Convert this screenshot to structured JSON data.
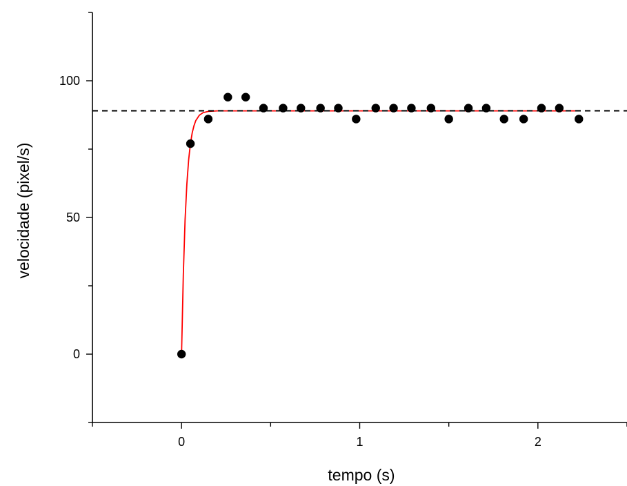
{
  "chart_data": {
    "type": "scatter",
    "title": "",
    "xlabel": "tempo (s)",
    "ylabel": "velocidade (pixel/s)",
    "xlim": [
      -0.5,
      2.5
    ],
    "ylim": [
      -25,
      125
    ],
    "xticks": [
      0,
      1,
      2
    ],
    "xtick_labels": [
      "0",
      "1",
      "2"
    ],
    "yticks": [
      0,
      50,
      100
    ],
    "ytick_labels": [
      "0",
      "50",
      "100"
    ],
    "grid": false,
    "series": [
      {
        "kind": "scatter",
        "color": "#000000",
        "x": [
          0.0,
          0.05,
          0.15,
          0.26,
          0.36,
          0.46,
          0.57,
          0.67,
          0.78,
          0.88,
          0.98,
          1.09,
          1.19,
          1.29,
          1.4,
          1.5,
          1.61,
          1.71,
          1.81,
          1.92,
          2.02,
          2.12,
          2.23
        ],
        "y": [
          0,
          77,
          86,
          94,
          94,
          90,
          90,
          90,
          90,
          90,
          86,
          90,
          90,
          90,
          90,
          86,
          90,
          90,
          86,
          86,
          90,
          90,
          86
        ]
      },
      {
        "kind": "fit-curve",
        "color": "#ff0000",
        "model": "v = 89 * (1 - exp(-t / 0.025))",
        "x": [
          0.0,
          0.01,
          0.02,
          0.03,
          0.04,
          0.05,
          0.06,
          0.07,
          0.08,
          0.1,
          0.12,
          0.15,
          0.2,
          0.3,
          0.5,
          1.0,
          1.5,
          2.0,
          2.23
        ],
        "y": [
          0,
          29.3,
          49.0,
          62.2,
          71.1,
          77.0,
          81.0,
          83.6,
          85.4,
          87.4,
          88.3,
          88.8,
          89.0,
          89.0,
          89.0,
          89.0,
          89.0,
          89.0,
          89.0
        ]
      },
      {
        "kind": "reference-line",
        "color": "#000000",
        "style": "dashed",
        "y": 89
      }
    ]
  }
}
